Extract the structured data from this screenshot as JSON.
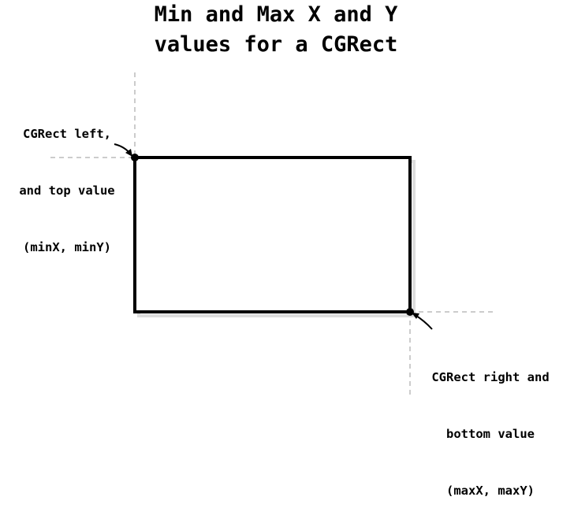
{
  "title": {
    "line1": "Min and Max X and Y",
    "line2": "values for a CGRect"
  },
  "labels": {
    "min": {
      "line1": "CGRect left,",
      "line2": "and top value",
      "line3": "(minX, minY)"
    },
    "max": {
      "line1": "CGRect right and",
      "line2": "bottom value",
      "line3": "(maxX, maxY)"
    }
  },
  "colors": {
    "stroke": "#000000",
    "guide": "#bbbbbb",
    "shadow": "#dddddd",
    "background": "#ffffff"
  }
}
